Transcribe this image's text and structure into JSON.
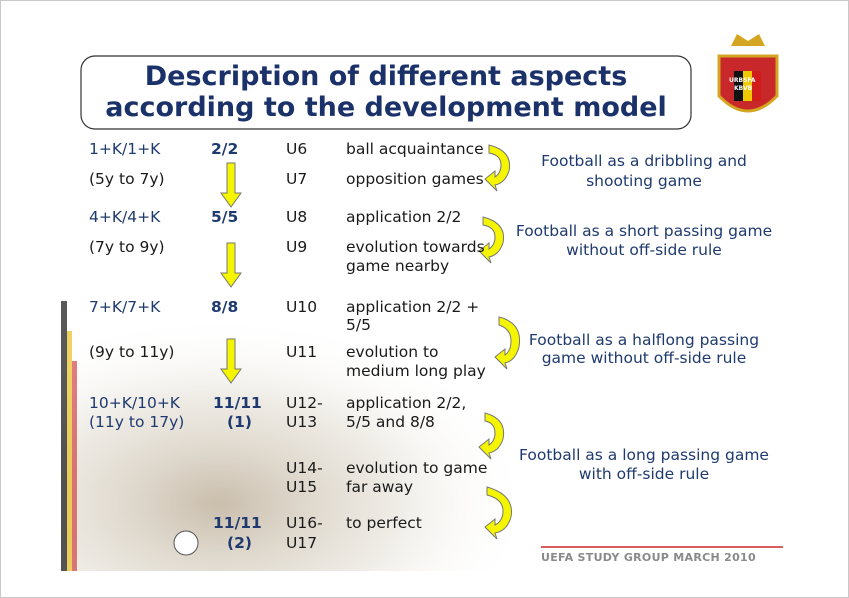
{
  "title": [
    "Description of different aspects",
    "according to the development model"
  ],
  "logo": [
    "URBSFA",
    "KBVB"
  ],
  "blocks": [
    {
      "format": "1+K/1+K",
      "age": "(5y to 7y)",
      "games": [
        [
          "2/2"
        ]
      ],
      "levels": [
        {
          "code": [
            "U6"
          ],
          "text": [
            "ball acquaintance"
          ]
        },
        {
          "code": [
            "U7"
          ],
          "text": [
            "opposition games"
          ]
        }
      ],
      "summary": [
        "Football as a dribbling and",
        "shooting game"
      ]
    },
    {
      "format": "4+K/4+K",
      "age": "(7y to 9y)",
      "games": [
        [
          "5/5"
        ]
      ],
      "levels": [
        {
          "code": [
            "U8"
          ],
          "text": [
            "application 2/2"
          ]
        },
        {
          "code": [
            "U9"
          ],
          "text": [
            "evolution towards",
            "game nearby"
          ]
        }
      ],
      "summary": [
        "Football as a short passing game",
        "without off-side rule"
      ]
    },
    {
      "format": "7+K/7+K",
      "age": "(9y to 11y)",
      "games": [
        [
          "8/8"
        ]
      ],
      "levels": [
        {
          "code": [
            "U10"
          ],
          "text": [
            "application 2/2 +",
            "5/5"
          ]
        },
        {
          "code": [
            "U11"
          ],
          "text": [
            "evolution to",
            "medium long play"
          ]
        }
      ],
      "summary": [
        "Football as a halflong passing",
        "game without off-side rule"
      ]
    },
    {
      "format": "10+K/10+K",
      "age": "(11y to 17y)",
      "games": [
        [
          "11/11",
          "(1)"
        ],
        [
          "11/11",
          "(2)"
        ]
      ],
      "levels": [
        {
          "code": [
            "U12-",
            "U13"
          ],
          "text": [
            "application 2/2,",
            "5/5 and 8/8"
          ]
        },
        {
          "code": [
            "U14-",
            "U15"
          ],
          "text": [
            "evolution to game",
            "far away"
          ]
        },
        {
          "code": [
            "U16-",
            "U17"
          ],
          "text": [
            "to perfect"
          ]
        }
      ],
      "summary": [
        "Football as a long passing game",
        "with off-side rule"
      ]
    }
  ],
  "footer": "UEFA STUDY GROUP MARCH 2010"
}
